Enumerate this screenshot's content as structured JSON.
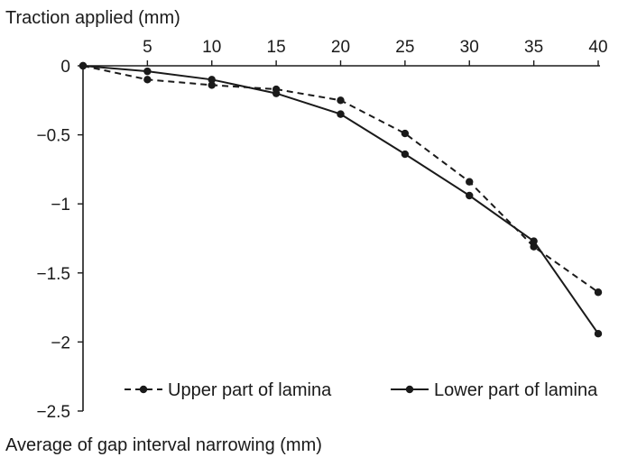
{
  "chart_data": {
    "type": "line",
    "title": "",
    "x_axis_title": "Traction applied (mm)",
    "y_axis_title": "Average of gap interval narrowing (mm)",
    "x": [
      0,
      5,
      10,
      15,
      20,
      25,
      30,
      35,
      40
    ],
    "x_ticks": [
      "5",
      "10",
      "15",
      "20",
      "25",
      "30",
      "35",
      "40"
    ],
    "y_ticks": [
      "0",
      "−0.5",
      "−1",
      "−1.5",
      "−2",
      "−2.5"
    ],
    "y_tick_values": [
      0,
      -0.5,
      -1,
      -1.5,
      -2,
      -2.5
    ],
    "xlim": [
      0,
      40
    ],
    "ylim": [
      -2.5,
      0
    ],
    "grid": false,
    "legend_position": "bottom-center",
    "series": [
      {
        "name": "Upper part of lamina",
        "style": "dashed",
        "values": [
          0,
          -0.1,
          -0.14,
          -0.17,
          -0.25,
          -0.49,
          -0.84,
          -1.31,
          -1.64
        ]
      },
      {
        "name": "Lower part of lamina",
        "style": "solid",
        "values": [
          0,
          -0.04,
          -0.1,
          -0.2,
          -0.35,
          -0.64,
          -0.94,
          -1.27,
          -1.94
        ]
      }
    ]
  }
}
